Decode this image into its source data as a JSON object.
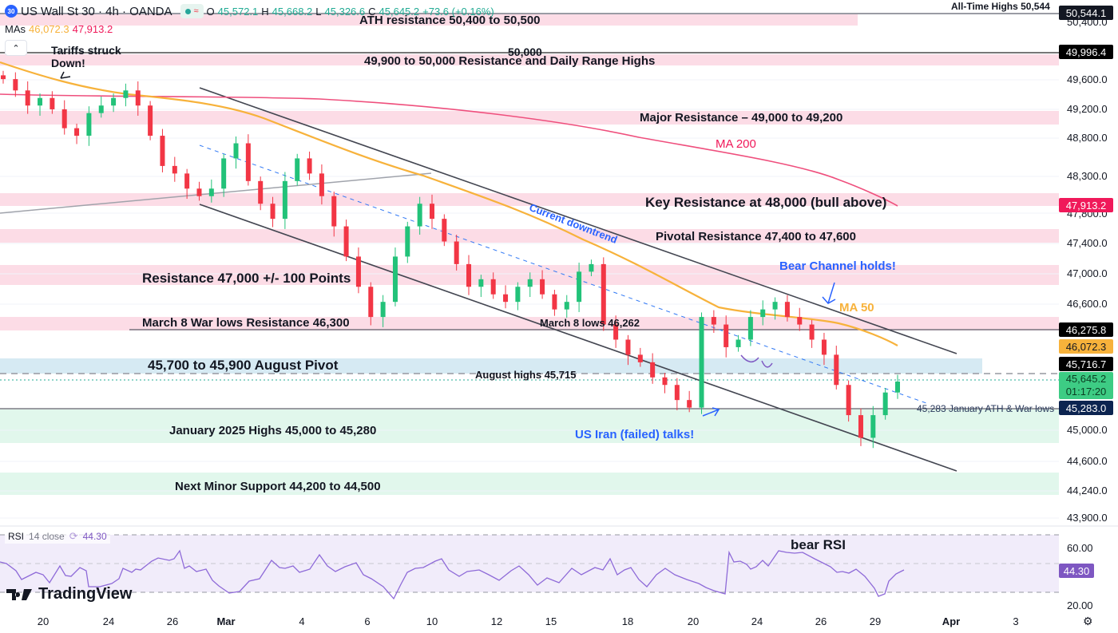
{
  "header": {
    "symbol_badge": "30",
    "title": "US Wall St 30 · 4h · OANDA",
    "ohlc": {
      "o_label": "O",
      "o": "45,572.1",
      "h_label": "H",
      "h": "45,668.2",
      "l_label": "L",
      "l": "45,326.6",
      "c_label": "C",
      "c": "45,645.2",
      "change": "+73.6 (+0.16%)"
    },
    "mas_label": "MAs",
    "ma50_value": "46,072.3",
    "ma200_value": "47,913.2",
    "collapse_icon": "chevron-up-icon"
  },
  "colors": {
    "bull": "#22c279",
    "bear": "#f23645",
    "ma50": "#f7b23b",
    "ma200": "#ef4f7d",
    "resistance_zone": "#fcdce6",
    "pivot_zone": "#d6eaf3",
    "support_zone": "#e1f7ec",
    "rsi_line": "#8e6ad8",
    "rsi_bg": "#f1ecfa",
    "annotation_blue": "#2962ff"
  },
  "price_axis": {
    "labels": [
      "50,400.0",
      "49,600.0",
      "49,200.0",
      "48,800.0",
      "48,300.0",
      "47,800.0",
      "47,400.0",
      "47,000.0",
      "46,600.0",
      "45,000.0",
      "44,600.0",
      "44,240.0",
      "43,900.0"
    ],
    "tags": [
      {
        "name": "ath-tag",
        "value": "50,544.1",
        "bg": "#131722"
      },
      {
        "name": "round-50k-tag",
        "value": "49,996.4",
        "bg": "#000000"
      },
      {
        "name": "ma200-tag",
        "value": "47,913.2",
        "bg": "#f0195a"
      },
      {
        "name": "march8-tag",
        "value": "46,275.8",
        "bg": "#000000"
      },
      {
        "name": "ma50-tag",
        "value": "46,072.3",
        "bg": "#f7b23b"
      },
      {
        "name": "aug-high-tag",
        "value": "45,716.7",
        "bg": "#000000"
      },
      {
        "name": "last-price-tag",
        "value": "45,645.2",
        "countdown": "01:17:20",
        "bg": "#3dcc84"
      },
      {
        "name": "jan-ath-tag",
        "value": "45,283.0",
        "bg": "#0c2450"
      }
    ]
  },
  "rsi": {
    "label": "RSI",
    "params": "14 close",
    "value": "44.30",
    "axis": [
      "60.00",
      "20.00"
    ],
    "annotation": "bear RSI"
  },
  "time_axis": [
    "20",
    "24",
    "26",
    "Mar",
    "4",
    "6",
    "10",
    "12",
    "15",
    "18",
    "20",
    "24",
    "26",
    "29",
    "Apr",
    "3"
  ],
  "annotations": {
    "ath_top": "All-Time Highs 50,544",
    "ath_resistance": "ATH resistance 50,400 to 50,500",
    "fifty_k": "50,000",
    "range_highs": "49,900 to 50,000 Resistance and Daily Range Highs",
    "tariffs": "Tariffs struck Down!",
    "major_res": "Major Resistance – 49,000 to 49,200",
    "ma200": "MA 200",
    "key_res": "Key Resistance at 48,000 (bull above)",
    "downtrend": "Current downtrend",
    "pivotal": "Pivotal Resistance 47,400 to 47,600",
    "res_47k": "Resistance 47,000 +/- 100 Points",
    "bear_channel": "Bear Channel holds!",
    "ma50": "MA 50",
    "march8_war": "March 8 War lows Resistance 46,300",
    "march8_lows": "March 8 lows 46,262",
    "aug_pivot": "45,700 to 45,900 August Pivot",
    "aug_highs": "August highs 45,715",
    "jan_ath": "45,283 January ATH & War lows",
    "jan_highs": "January 2025 Highs 45,000 to 45,280",
    "iran": "US Iran (failed) talks!",
    "minor_support": "Next Minor Support 44,200 to 44,500"
  },
  "brand": {
    "logo_text": "TradingView"
  },
  "settings_icon": "gear-icon",
  "chart_data": {
    "type": "candlestick",
    "title": "US Wall St 30 · 4h · OANDA",
    "x_ticks": [
      "20",
      "24",
      "26",
      "Mar",
      "4",
      "6",
      "10",
      "12",
      "15",
      "18",
      "20",
      "24",
      "26",
      "29",
      "Apr",
      "3"
    ],
    "y_range": [
      43800,
      50600
    ],
    "last": {
      "open": 45572.1,
      "high": 45668.2,
      "low": 45326.6,
      "close": 45645.2,
      "change": 73.6,
      "change_pct": 0.16
    },
    "moving_averages": [
      {
        "name": "MA 50",
        "value": 46072.3
      },
      {
        "name": "MA 200",
        "value": 47913.2
      }
    ],
    "approx_closes": [
      49650,
      49500,
      49300,
      49400,
      49250,
      49000,
      48900,
      49200,
      49300,
      49400,
      49500,
      49300,
      48900,
      48500,
      48400,
      48200,
      48100,
      48200,
      48600,
      48800,
      48300,
      48000,
      47800,
      48300,
      48600,
      48400,
      48100,
      47700,
      47300,
      46900,
      46500,
      46700,
      47300,
      47700,
      48000,
      47800,
      47500,
      47200,
      46900,
      47000,
      46800,
      46700,
      46900,
      47000,
      46800,
      46600,
      46700,
      47100,
      47200,
      46400,
      46200,
      46000,
      45900,
      45700,
      45600,
      45400,
      45300,
      46500,
      46400,
      46100,
      46200,
      46500,
      46600,
      46700,
      46500,
      46400,
      46200,
      46000,
      45600,
      45200,
      44900,
      45200,
      45500,
      45645
    ],
    "horizontal_levels": [
      {
        "label": "All-Time Highs",
        "value": 50544
      },
      {
        "label": "ATH resistance",
        "from": 50400,
        "to": 50500
      },
      {
        "label": "50,000",
        "value": 50000
      },
      {
        "label": "Range highs",
        "from": 49900,
        "to": 50000
      },
      {
        "label": "Major Resistance",
        "from": 49000,
        "to": 49200
      },
      {
        "label": "Key Resistance",
        "value": 48000
      },
      {
        "label": "Pivotal Resistance",
        "from": 47400,
        "to": 47600
      },
      {
        "label": "Resistance 47,000",
        "from": 46900,
        "to": 47100
      },
      {
        "label": "March 8 lows",
        "value": 46262
      },
      {
        "label": "August Pivot",
        "from": 45700,
        "to": 45900
      },
      {
        "label": "August highs",
        "value": 45715
      },
      {
        "label": "January ATH & War lows",
        "value": 45283
      },
      {
        "label": "January 2025 Highs",
        "from": 45000,
        "to": 45280
      },
      {
        "label": "Next Minor Support",
        "from": 44200,
        "to": 44500
      }
    ],
    "rsi": {
      "period": 14,
      "value": 44.3,
      "levels": [
        70,
        50,
        30
      ],
      "axis_ticks": [
        60,
        20
      ]
    }
  }
}
